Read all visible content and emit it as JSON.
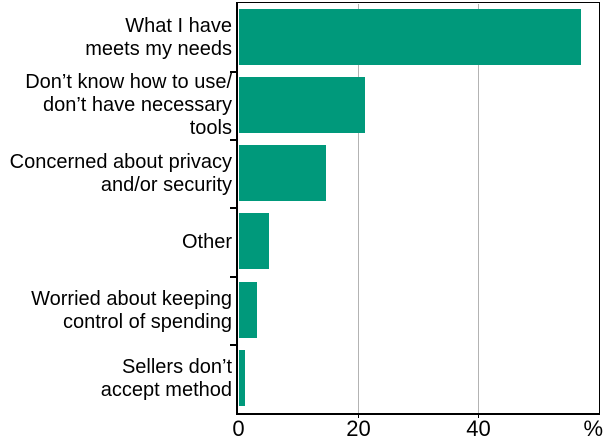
{
  "chart_data": {
    "type": "bar",
    "orientation": "horizontal",
    "categories": [
      "What I have\nmeets my needs",
      "Don’t know how to use/\ndon’t have necessary tools",
      "Concerned about privacy\nand/or security",
      "Other",
      "Worried about keeping\ncontrol of spending",
      "Sellers don’t\naccept method"
    ],
    "values": [
      57,
      21,
      14.5,
      5,
      3,
      1
    ],
    "unit": "%",
    "xlabel": "%",
    "x_ticks": [
      0,
      20,
      40
    ],
    "x_tick_labels": [
      "0",
      "20",
      "40"
    ],
    "xlim": [
      0,
      60
    ],
    "legend": "none",
    "grid": "vertical-at-x-ticks",
    "colors": {
      "bar": "#00997B",
      "gridline": "#b3b3b3",
      "axis": "#000000",
      "text": "#000000",
      "background": "#ffffff"
    }
  }
}
